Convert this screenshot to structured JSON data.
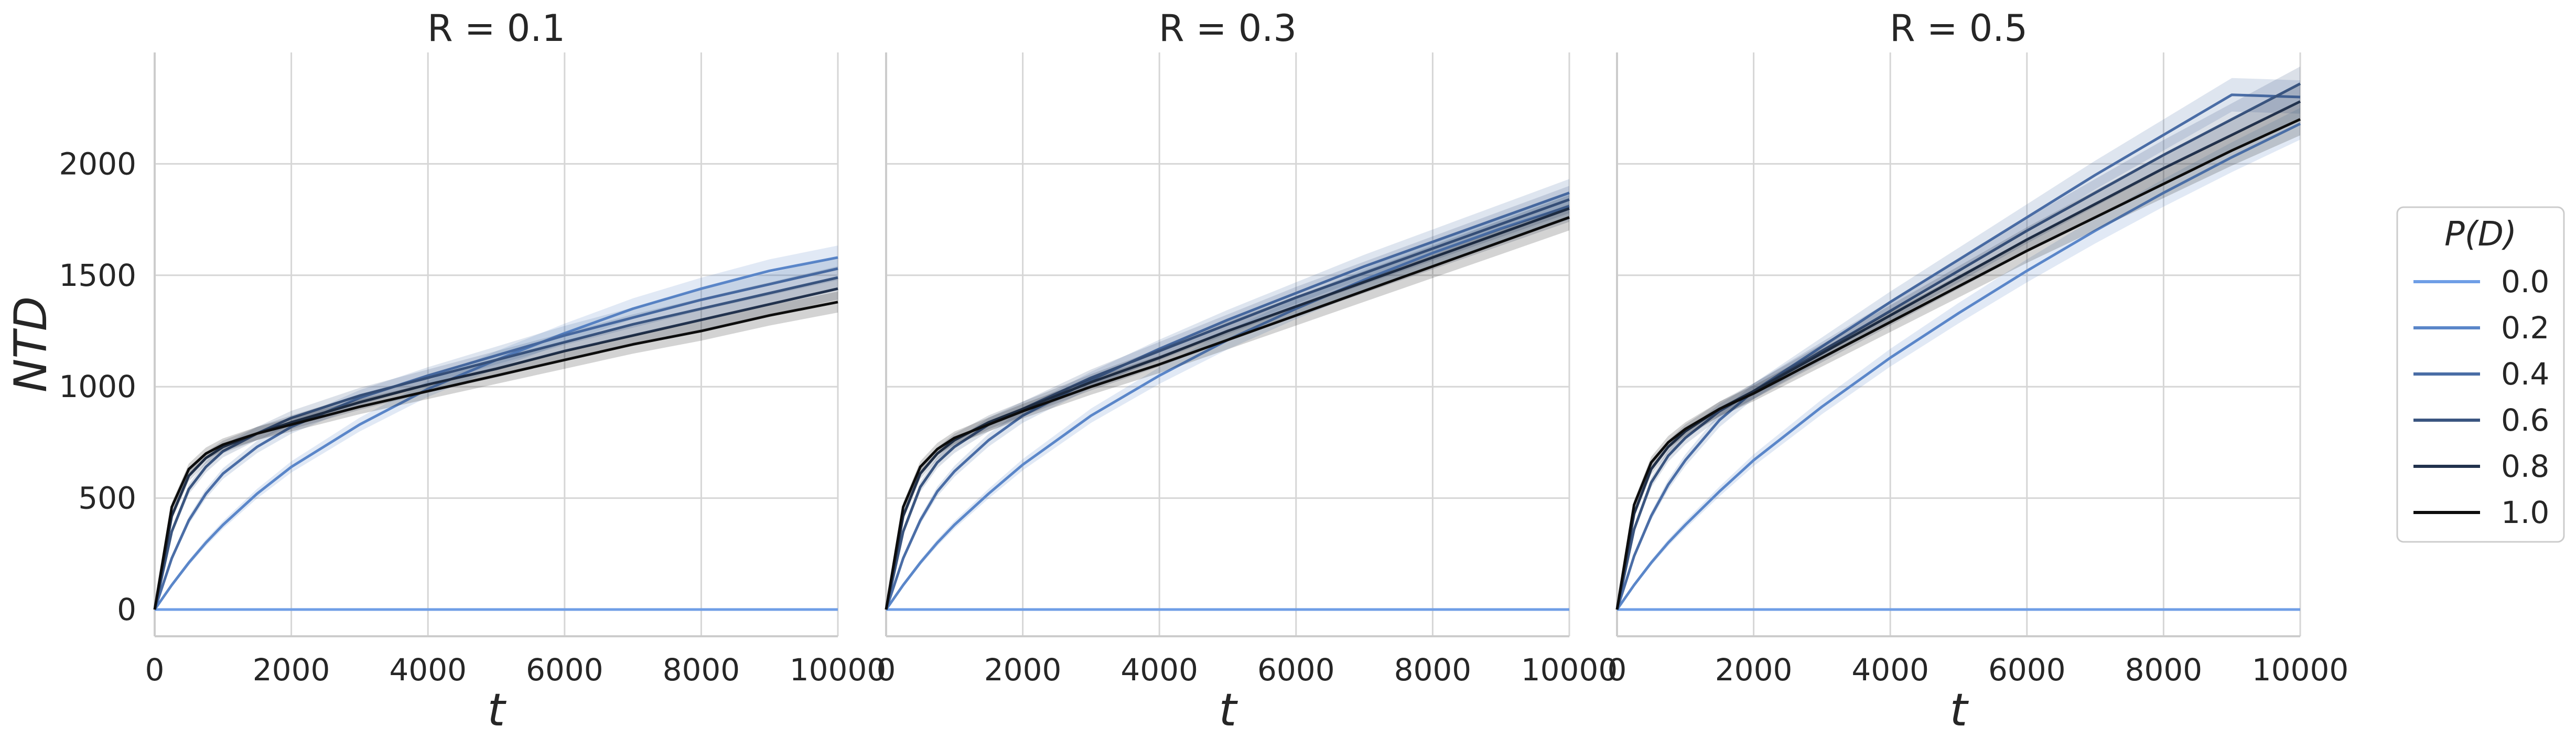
{
  "colors": {
    "grid": "#d6d6d6",
    "spine": "#cccccc",
    "text": "#262626",
    "series": [
      "#6f9ee6",
      "#5a86c9",
      "#4a6da6",
      "#3a5580",
      "#22324d",
      "#0d0d0d"
    ]
  },
  "chart_data": {
    "type": "line",
    "layout": "facet-columns",
    "shared_y": true,
    "legend": {
      "title": "P(D)",
      "placement": "right",
      "entries": [
        "0.0",
        "0.2",
        "0.4",
        "0.6",
        "0.8",
        "1.0"
      ]
    },
    "x": [
      0,
      250,
      500,
      750,
      1000,
      1500,
      2000,
      3000,
      4000,
      5000,
      6000,
      7000,
      8000,
      9000,
      10000
    ],
    "xlim": [
      0,
      10000
    ],
    "ylim": [
      -120,
      2500
    ],
    "xticks": [
      "0",
      "2000",
      "4000",
      "6000",
      "8000",
      "10000"
    ],
    "yticks": [
      "0",
      "500",
      "1000",
      "1500",
      "2000"
    ],
    "xlabel": "t",
    "ylabel": "NTD",
    "grid": true,
    "bands": true,
    "panels": [
      {
        "title": "R = 0.1",
        "series": [
          {
            "name": "0.0",
            "values": [
              0,
              0,
              0,
              0,
              0,
              0,
              0,
              0,
              0,
              0,
              0,
              0,
              0,
              0,
              0
            ]
          },
          {
            "name": "0.2",
            "values": [
              0,
              110,
              210,
              300,
              380,
              520,
              640,
              830,
              990,
              1120,
              1240,
              1350,
              1440,
              1520,
              1580
            ]
          },
          {
            "name": "0.4",
            "values": [
              0,
              230,
              400,
              520,
              610,
              730,
              820,
              950,
              1050,
              1140,
              1230,
              1310,
              1390,
              1460,
              1530
            ]
          },
          {
            "name": "0.6",
            "values": [
              0,
              350,
              540,
              640,
              710,
              790,
              860,
              960,
              1040,
              1120,
              1200,
              1280,
              1350,
              1420,
              1490
            ]
          },
          {
            "name": "0.8",
            "values": [
              0,
              420,
              600,
              680,
              730,
              790,
              840,
              930,
              1010,
              1080,
              1160,
              1230,
              1300,
              1370,
              1440
            ]
          },
          {
            "name": "1.0",
            "values": [
              0,
              460,
              630,
              700,
              740,
              790,
              830,
              910,
              980,
              1050,
              1120,
              1190,
              1250,
              1320,
              1380
            ]
          }
        ]
      },
      {
        "title": "R = 0.3",
        "series": [
          {
            "name": "0.0",
            "values": [
              0,
              0,
              0,
              0,
              0,
              0,
              0,
              0,
              0,
              0,
              0,
              0,
              0,
              0,
              0
            ]
          },
          {
            "name": "0.2",
            "values": [
              0,
              110,
              210,
              300,
              380,
              520,
              650,
              870,
              1050,
              1210,
              1350,
              1480,
              1600,
              1710,
              1810
            ]
          },
          {
            "name": "0.4",
            "values": [
              0,
              230,
              400,
              530,
              620,
              760,
              870,
              1030,
              1170,
              1300,
              1420,
              1540,
              1650,
              1760,
              1870
            ]
          },
          {
            "name": "0.6",
            "values": [
              0,
              350,
              550,
              660,
              730,
              830,
              900,
              1040,
              1160,
              1280,
              1400,
              1510,
              1620,
              1730,
              1840
            ]
          },
          {
            "name": "0.8",
            "values": [
              0,
              420,
              610,
              700,
              760,
              840,
              900,
              1020,
              1130,
              1250,
              1360,
              1470,
              1580,
              1690,
              1800
            ]
          },
          {
            "name": "1.0",
            "values": [
              0,
              460,
              640,
              720,
              770,
              830,
              890,
              1000,
              1100,
              1210,
              1320,
              1430,
              1540,
              1650,
              1760
            ]
          }
        ]
      },
      {
        "title": "R = 0.5",
        "series": [
          {
            "name": "0.0",
            "values": [
              0,
              0,
              0,
              0,
              0,
              0,
              0,
              0,
              0,
              0,
              0,
              0,
              0,
              0,
              0
            ]
          },
          {
            "name": "0.2",
            "values": [
              0,
              110,
              210,
              300,
              380,
              530,
              670,
              910,
              1130,
              1330,
              1520,
              1700,
              1870,
              2030,
              2180
            ]
          },
          {
            "name": "0.4",
            "values": [
              0,
              240,
              420,
              560,
              670,
              850,
              980,
              1180,
              1380,
              1570,
              1760,
              1950,
              2130,
              2310,
              2300
            ]
          },
          {
            "name": "0.6",
            "values": [
              0,
              360,
              570,
              690,
              770,
              890,
              980,
              1160,
              1340,
              1520,
              1700,
              1870,
              2040,
              2200,
              2360
            ]
          },
          {
            "name": "0.8",
            "values": [
              0,
              430,
              630,
              730,
              800,
              900,
              980,
              1150,
              1320,
              1490,
              1660,
              1820,
              1980,
              2130,
              2280
            ]
          },
          {
            "name": "1.0",
            "values": [
              0,
              470,
              660,
              750,
              810,
              900,
              970,
              1130,
              1290,
              1450,
              1610,
              1760,
              1910,
              2060,
              2200
            ]
          }
        ]
      }
    ]
  }
}
